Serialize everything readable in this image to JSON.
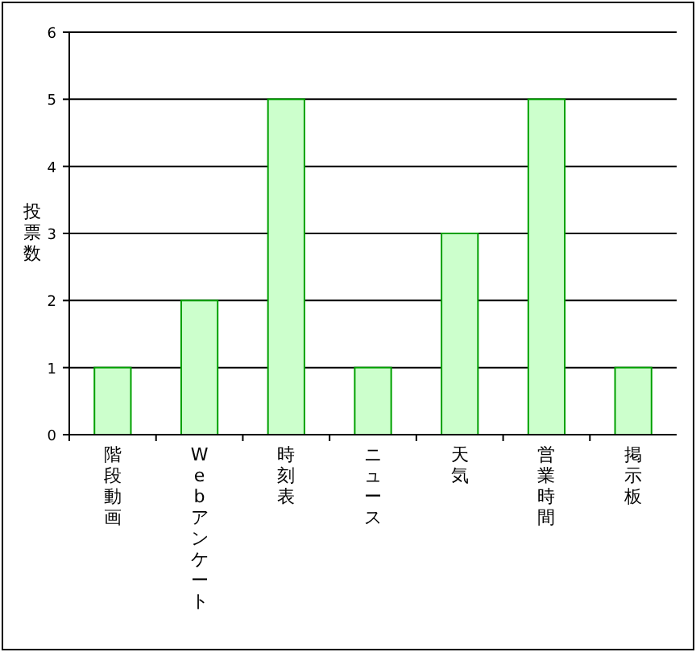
{
  "chart_data": {
    "type": "bar",
    "ylabel": "投票数",
    "categories": [
      "階段動画",
      "Webアンケート",
      "時刻表",
      "ニュース",
      "天気",
      "営業時間",
      "掲示板"
    ],
    "values": [
      1,
      2,
      5,
      1,
      3,
      5,
      1
    ],
    "color": "#ccffcc",
    "ylim": [
      0,
      6
    ],
    "yticks": [
      0,
      1,
      2,
      3,
      4,
      5,
      6
    ],
    "grid": "y"
  }
}
